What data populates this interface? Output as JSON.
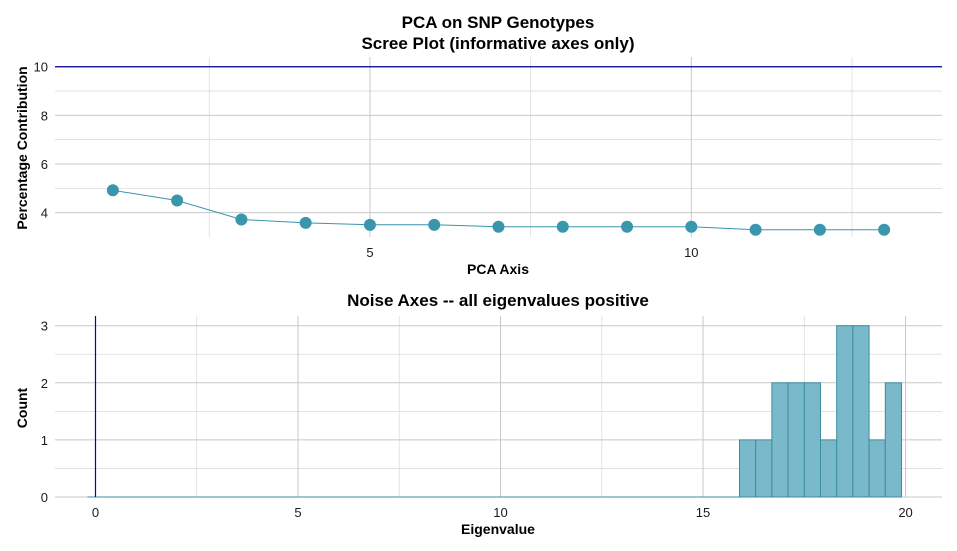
{
  "chart_data": [
    {
      "type": "line",
      "title": "PCA on SNP Genotypes",
      "subtitle": "Scree Plot (informative axes only)",
      "xlabel": "PCA Axis",
      "ylabel": "Percentage Contribution",
      "x_ticks": [
        5,
        10
      ],
      "y_ticks": [
        4,
        6,
        8,
        10
      ],
      "xlim": [
        0.1,
        13.9
      ],
      "ylim": [
        3,
        10.4
      ],
      "hline": 10,
      "hline_color": "#00008b",
      "point_color": "#3a96ad",
      "line_color": "#3a96ad",
      "grid": true,
      "series": [
        {
          "x": [
            1,
            2,
            3,
            4,
            5,
            6,
            7,
            8,
            9,
            10,
            11,
            12,
            13
          ],
          "values": [
            4.92,
            4.5,
            3.72,
            3.58,
            3.5,
            3.5,
            3.42,
            3.42,
            3.42,
            3.42,
            3.3,
            3.3,
            3.3
          ]
        }
      ]
    },
    {
      "type": "bar",
      "title": "Noise Axes -- all eigenvalues positive",
      "xlabel": "Eigenvalue",
      "ylabel": "Count",
      "x_ticks": [
        0,
        5,
        10,
        15,
        20
      ],
      "y_ticks": [
        0,
        1,
        2,
        3
      ],
      "xlim": [
        -1.0,
        20.9
      ],
      "ylim": [
        0,
        3.17
      ],
      "vline": 0,
      "vline_color": "#0000cd",
      "bar_fill": "#79b9c9",
      "bar_stroke": "#3a8ea3",
      "grid": true,
      "bins": [
        {
          "x0": 15.9,
          "x1": 16.3,
          "count": 1
        },
        {
          "x0": 16.3,
          "x1": 16.7,
          "count": 1
        },
        {
          "x0": 16.7,
          "x1": 17.1,
          "count": 2
        },
        {
          "x0": 17.1,
          "x1": 17.5,
          "count": 2
        },
        {
          "x0": 17.5,
          "x1": 17.9,
          "count": 2
        },
        {
          "x0": 17.9,
          "x1": 18.3,
          "count": 1
        },
        {
          "x0": 18.3,
          "x1": 18.7,
          "count": 3
        },
        {
          "x0": 18.7,
          "x1": 19.1,
          "count": 3
        },
        {
          "x0": 19.1,
          "x1": 19.5,
          "count": 1
        },
        {
          "x0": 19.5,
          "x1": 19.9,
          "count": 2
        }
      ]
    }
  ]
}
